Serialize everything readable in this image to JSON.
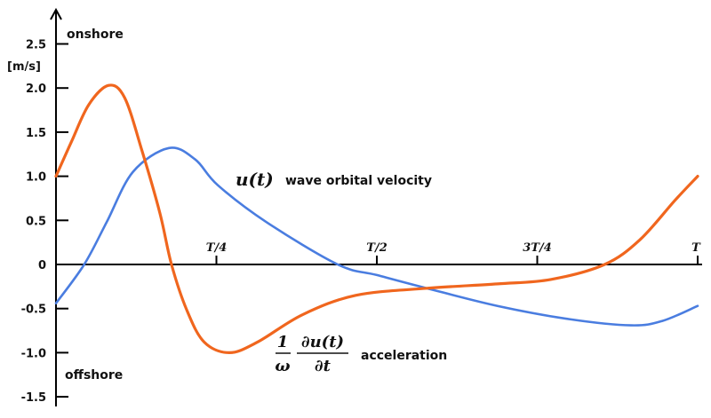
{
  "chart_data": {
    "type": "line",
    "title": "",
    "xlabel": "",
    "ylabel": "[m/s]",
    "xlim": [
      0,
      1
    ],
    "ylim": [
      -1.5,
      2.5
    ],
    "grid": false,
    "y_ticks": [
      2.5,
      2.0,
      1.5,
      1.0,
      0.5,
      0,
      -0.5,
      -1.0,
      -1.5
    ],
    "y_tick_labels": [
      "2.5",
      "2.0",
      "1.5",
      "1.0",
      "0.5",
      "0",
      "-0.5",
      "-1.0",
      "-1.5"
    ],
    "x_ticks": [
      0.25,
      0.5,
      0.75,
      1.0
    ],
    "x_tick_labels": [
      "T/4",
      "T/2",
      "3T/4",
      "T"
    ],
    "annotations": {
      "top": "onshore",
      "bottom": "offshore"
    },
    "series": [
      {
        "name": "u(t)",
        "description_label": "wave orbital velocity",
        "color": "#4a7de0",
        "x": [
          0,
          0.044,
          0.079,
          0.12,
          0.176,
          0.217,
          0.252,
          0.328,
          0.439,
          0.5,
          0.578,
          0.688,
          0.8,
          0.896,
          0.945,
          1.0
        ],
        "y": [
          -0.44,
          0,
          0.48,
          1.05,
          1.32,
          1.19,
          0.9,
          0.48,
          0,
          -0.12,
          -0.27,
          -0.47,
          -0.62,
          -0.69,
          -0.64,
          -0.47
        ]
      },
      {
        "name": "1/ω ∂u(t)/∂t",
        "name_parts": {
          "numerator_left": "1",
          "denominator_left": "ω",
          "numerator_right": "∂u(t)",
          "denominator_right": "∂t"
        },
        "description_label": "acceleration",
        "color": "#f0661e",
        "x": [
          0,
          0.024,
          0.051,
          0.082,
          0.107,
          0.134,
          0.162,
          0.18,
          0.204,
          0.231,
          0.27,
          0.314,
          0.384,
          0.467,
          0.578,
          0.688,
          0.771,
          0.855,
          0.91,
          0.965,
          1.0
        ],
        "y": [
          1.0,
          1.39,
          1.81,
          2.03,
          1.89,
          1.29,
          0.58,
          0,
          -0.52,
          -0.88,
          -1.0,
          -0.88,
          -0.57,
          -0.35,
          -0.27,
          -0.22,
          -0.17,
          0,
          0.28,
          0.73,
          1.0
        ]
      }
    ]
  }
}
